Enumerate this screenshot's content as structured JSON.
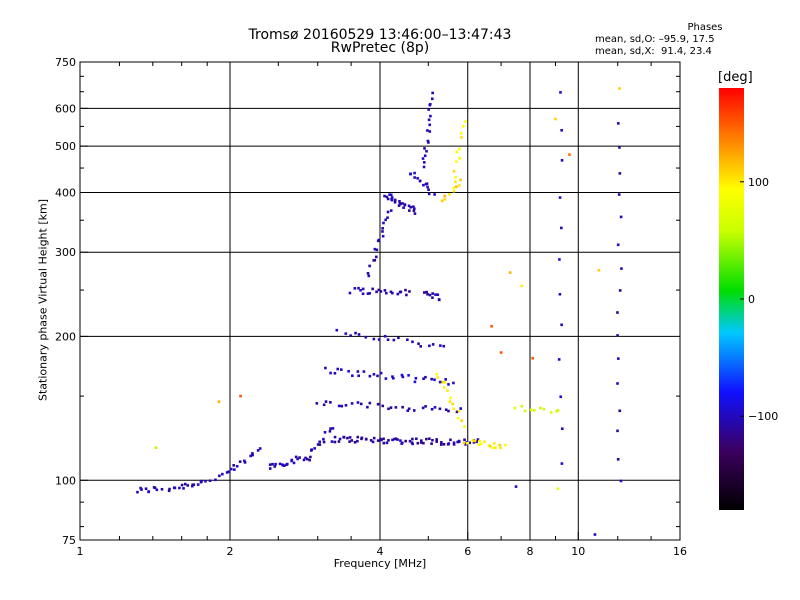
{
  "header": {
    "title_line1": "Tromsø 20160529 13:46:00–13:47:43",
    "title_line2": "RwPretec (8p)",
    "phases_title": "Phases",
    "phases_o": "mean, sd,O: –95.9, 17.5",
    "phases_x": "mean, sd,X:  91.4, 23.4"
  },
  "colorbar": {
    "unit": "[deg]",
    "min": -180,
    "max": 180,
    "ticks": [
      {
        "value": 100,
        "label": "100"
      },
      {
        "value": 0,
        "label": "0"
      },
      {
        "value": -100,
        "label": "−100"
      }
    ]
  },
  "chart_data": {
    "type": "scatter",
    "title": "Tromsø 20160529 13:46:00–13:47:43",
    "subtitle": "RwPretec (8p)",
    "xlabel": "Frequency [MHz]",
    "ylabel": "Stationary phase Virtual Height [km]",
    "xscale": "log",
    "yscale": "log",
    "xlim": [
      1,
      16
    ],
    "ylim": [
      75,
      750
    ],
    "grid": true,
    "x_ticks": [
      {
        "value": 1,
        "label": "1"
      },
      {
        "value": 2,
        "label": "2"
      },
      {
        "value": 4,
        "label": "4"
      },
      {
        "value": 6,
        "label": "6"
      },
      {
        "value": 8,
        "label": "8"
      },
      {
        "value": 10,
        "label": "10"
      },
      {
        "value": 16,
        "label": "16"
      }
    ],
    "y_ticks": [
      {
        "value": 75,
        "label": "75"
      },
      {
        "value": 100,
        "label": "100"
      },
      {
        "value": 200,
        "label": "200"
      },
      {
        "value": 300,
        "label": "300"
      },
      {
        "value": 400,
        "label": "400"
      },
      {
        "value": 500,
        "label": "500"
      },
      {
        "value": 600,
        "label": "600"
      },
      {
        "value": 750,
        "label": "750"
      }
    ],
    "color_value": "phase [deg]",
    "segments": [
      {
        "x": [
          1.3,
          1.45
        ],
        "y": [
          95,
          96
        ],
        "phase": -105,
        "n": 10
      },
      {
        "x": [
          1.5,
          1.75
        ],
        "y": [
          96,
          99
        ],
        "phase": -105,
        "n": 14
      },
      {
        "x": [
          1.75,
          2.0
        ],
        "y": [
          99,
          104
        ],
        "phase": -100,
        "n": 8
      },
      {
        "x": [
          2.0,
          2.3
        ],
        "y": [
          104,
          116
        ],
        "phase": -105,
        "n": 12
      },
      {
        "x": [
          2.4,
          2.9
        ],
        "y": [
          107,
          112
        ],
        "phase": -105,
        "n": 22
      },
      {
        "x": [
          2.9,
          3.2
        ],
        "y": [
          115,
          128
        ],
        "phase": -105,
        "n": 12
      },
      {
        "x": [
          3.2,
          6.3
        ],
        "y": [
          122,
          120
        ],
        "phase": -110,
        "n": 70
      },
      {
        "x": [
          3.0,
          5.8
        ],
        "y": [
          145,
          140
        ],
        "phase": -105,
        "n": 30
      },
      {
        "x": [
          3.1,
          5.6
        ],
        "y": [
          170,
          160
        ],
        "phase": -100,
        "n": 30
      },
      {
        "x": [
          3.3,
          5.4
        ],
        "y": [
          205,
          190
        ],
        "phase": -105,
        "n": 20
      },
      {
        "x": [
          3.5,
          4.6
        ],
        "y": [
          250,
          247
        ],
        "phase": -105,
        "n": 22
      },
      {
        "x": [
          4.9,
          5.3
        ],
        "y": [
          245,
          242
        ],
        "phase": -105,
        "n": 10
      },
      {
        "x": [
          3.8,
          4.2
        ],
        "y": [
          270,
          370
        ],
        "phase": -105,
        "n": 18
      },
      {
        "x": [
          4.1,
          4.7
        ],
        "y": [
          395,
          365
        ],
        "phase": -105,
        "n": 26
      },
      {
        "x": [
          4.6,
          5.1
        ],
        "y": [
          440,
          400
        ],
        "phase": -100,
        "n": 14
      },
      {
        "x": [
          4.9,
          5.1
        ],
        "y": [
          450,
          640
        ],
        "phase": -105,
        "n": 18
      },
      {
        "x": [
          5.3,
          5.8
        ],
        "y": [
          385,
          420
        ],
        "phase": 110,
        "n": 8
      },
      {
        "x": [
          5.6,
          5.9
        ],
        "y": [
          410,
          560
        ],
        "phase": 100,
        "n": 12
      },
      {
        "x": [
          5.2,
          5.9
        ],
        "y": [
          168,
          130
        ],
        "phase": 100,
        "n": 14
      },
      {
        "x": [
          5.9,
          7.1
        ],
        "y": [
          120,
          118
        ],
        "phase": 100,
        "n": 18
      },
      {
        "x": [
          7.5,
          9.2
        ],
        "y": [
          142,
          140
        ],
        "phase": 60,
        "n": 10
      },
      {
        "x": [
          9.2,
          9.2
        ],
        "y": [
          110,
          640
        ],
        "phase": -100,
        "n": 12
      },
      {
        "x": [
          12.1,
          12.1
        ],
        "y": [
          100,
          560
        ],
        "phase": -105,
        "n": 16
      }
    ],
    "scatter_points": [
      {
        "x": 1.42,
        "y": 117,
        "phase": 50
      },
      {
        "x": 1.9,
        "y": 146,
        "phase": 120
      },
      {
        "x": 2.1,
        "y": 150,
        "phase": 150
      },
      {
        "x": 7.3,
        "y": 272,
        "phase": 120
      },
      {
        "x": 7.7,
        "y": 255,
        "phase": 100
      },
      {
        "x": 11.0,
        "y": 275,
        "phase": 110
      },
      {
        "x": 9.0,
        "y": 570,
        "phase": 110
      },
      {
        "x": 9.6,
        "y": 480,
        "phase": 140
      },
      {
        "x": 12.1,
        "y": 660,
        "phase": 110
      },
      {
        "x": 6.7,
        "y": 210,
        "phase": 150
      },
      {
        "x": 7.0,
        "y": 185,
        "phase": 150
      },
      {
        "x": 8.1,
        "y": 180,
        "phase": 150
      },
      {
        "x": 9.1,
        "y": 96,
        "phase": 80
      },
      {
        "x": 7.5,
        "y": 97,
        "phase": -100
      },
      {
        "x": 10.8,
        "y": 77,
        "phase": -100
      }
    ]
  }
}
